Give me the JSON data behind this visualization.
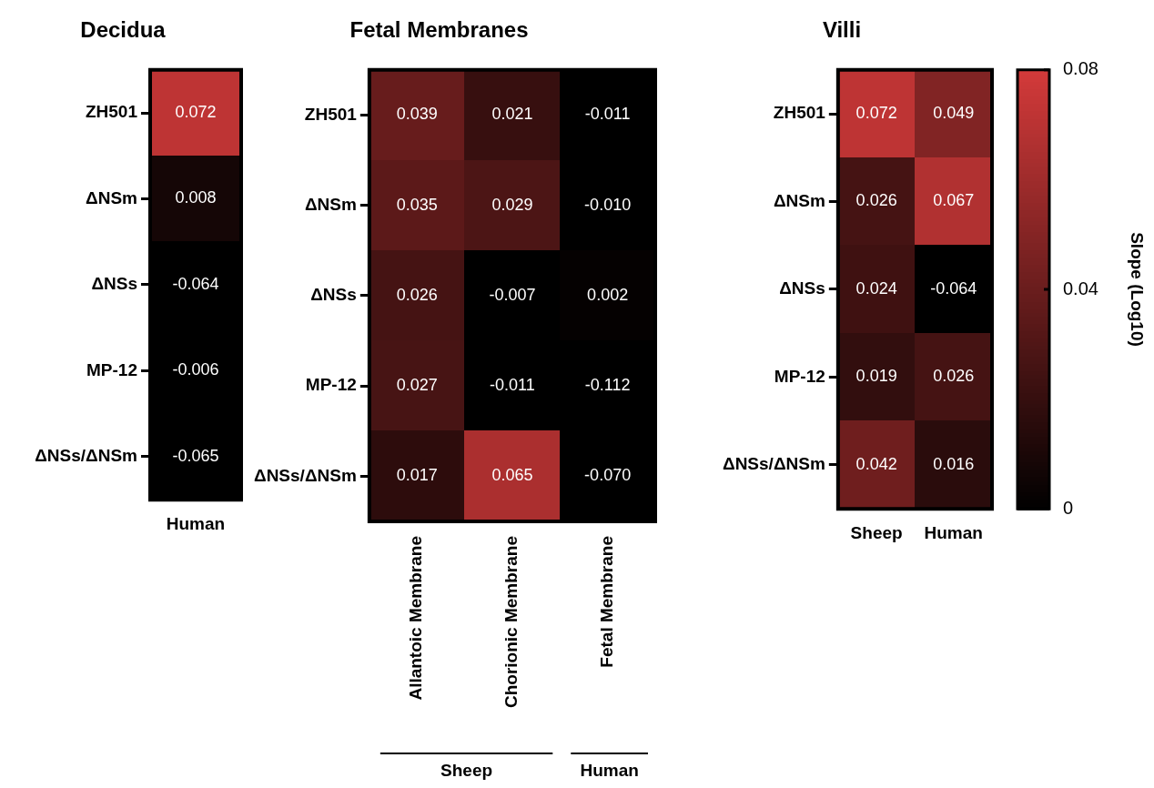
{
  "chart_data": [
    {
      "type": "heatmap",
      "title": "Decidua",
      "categories": [
        "Human"
      ],
      "y_categories": [
        "ZH501",
        "ΔNSm",
        "ΔNSs",
        "MP-12",
        "ΔNSs/ΔNSm"
      ],
      "cells": [
        [
          0.072
        ],
        [
          0.008
        ],
        [
          -0.064
        ],
        [
          -0.006
        ],
        [
          -0.065
        ]
      ],
      "cell_labels": [
        [
          "0.072"
        ],
        [
          "0.008"
        ],
        [
          "-0.064"
        ],
        [
          "-0.006"
        ],
        [
          "-0.065"
        ]
      ]
    },
    {
      "type": "heatmap",
      "title": "Fetal Membranes",
      "categories": [
        "Allantoic Membrane",
        "Chorionic Membrane",
        "Fetal Membrane"
      ],
      "y_categories": [
        "ZH501",
        "ΔNSm",
        "ΔNSs",
        "MP-12",
        "ΔNSs/ΔNSm"
      ],
      "cells": [
        [
          0.039,
          0.021,
          -0.011
        ],
        [
          0.035,
          0.029,
          -0.01
        ],
        [
          0.026,
          -0.007,
          0.002
        ],
        [
          0.027,
          -0.011,
          -0.112
        ],
        [
          0.017,
          0.065,
          -0.07
        ]
      ],
      "cell_labels": [
        [
          "0.039",
          "0.021",
          "-0.011"
        ],
        [
          "0.035",
          "0.029",
          "-0.010"
        ],
        [
          "0.026",
          "-0.007",
          "0.002"
        ],
        [
          "0.027",
          "-0.011",
          "-0.112"
        ],
        [
          "0.017",
          "0.065",
          "-0.070"
        ]
      ],
      "annotations": [
        "Sheep",
        "Human"
      ]
    },
    {
      "type": "heatmap",
      "title": "Villi",
      "categories": [
        "Sheep",
        "Human"
      ],
      "y_categories": [
        "ZH501",
        "ΔNSm",
        "ΔNSs",
        "MP-12",
        "ΔNSs/ΔNSm"
      ],
      "cells": [
        [
          0.072,
          0.049
        ],
        [
          0.026,
          0.067
        ],
        [
          0.024,
          -0.064
        ],
        [
          0.019,
          0.026
        ],
        [
          0.042,
          0.016
        ]
      ],
      "cell_labels": [
        [
          "0.072",
          "0.049"
        ],
        [
          "0.026",
          "0.067"
        ],
        [
          "0.024",
          "-0.064"
        ],
        [
          "0.019",
          "0.026"
        ],
        [
          "0.042",
          "0.016"
        ]
      ],
      "clim": [
        0,
        0.08
      ],
      "cticks": [
        0,
        0.04,
        0.08
      ],
      "clabel": "Slope (Log10)"
    }
  ]
}
